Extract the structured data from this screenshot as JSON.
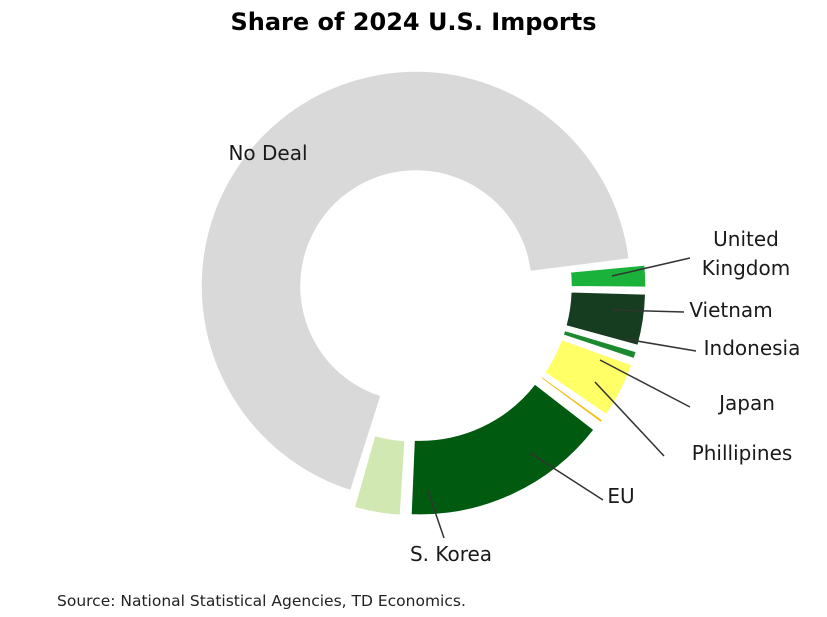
{
  "chart_data": {
    "type": "pie",
    "style": "donut",
    "title": "Share of 2024 U.S. Imports",
    "unit": "%",
    "legend": "none",
    "slices": [
      {
        "label": "No Deal",
        "value": 70.0,
        "color": "#d9d9d9",
        "exploded": true
      },
      {
        "label": "United Kingdom",
        "value": 2.0,
        "color": "#1ab23a",
        "exploded": true
      },
      {
        "label": "Vietnam",
        "value": 4.2,
        "color": "#163d1f",
        "exploded": true
      },
      {
        "label": "Indonesia",
        "value": 0.9,
        "color": "#1b8a2e",
        "exploded": true
      },
      {
        "label": "Japan",
        "value": 4.5,
        "color": "#ffff66",
        "exploded": true
      },
      {
        "label": "Phillipines",
        "value": 0.6,
        "color": "#f2c21b",
        "exploded": true
      },
      {
        "label": "EU",
        "value": 15.8,
        "color": "#005a10",
        "exploded": true
      },
      {
        "label": "S. Korea",
        "value": 3.8,
        "color": "#d1e8b3",
        "exploded": true
      }
    ]
  },
  "source": "Source: National Statistical Agencies, TD Economics."
}
